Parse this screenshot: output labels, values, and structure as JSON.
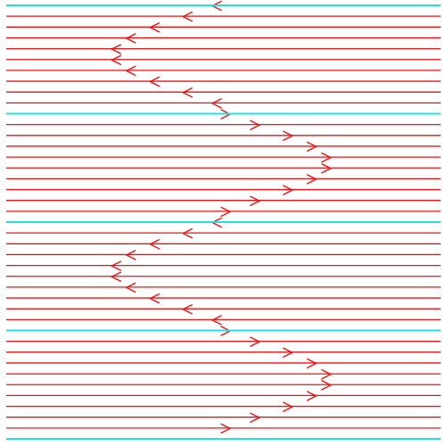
{
  "colors": {
    "background": "#ffffff",
    "line": "#ee1111",
    "boundary": "#22e0e0",
    "arrow": "#ee1111"
  },
  "icons": {
    "left": "chevron-left-icon",
    "right": "chevron-right-icon"
  },
  "diagram": {
    "rows_per_band": 10,
    "bands": [
      {
        "direction": "left",
        "offsets": [
          0.0,
          0.16,
          0.34,
          0.47,
          0.55,
          0.55,
          0.47,
          0.34,
          0.16,
          0.0
        ]
      },
      {
        "direction": "right",
        "offsets": [
          0.0,
          0.16,
          0.34,
          0.47,
          0.55,
          0.55,
          0.47,
          0.34,
          0.16,
          0.0
        ]
      },
      {
        "direction": "left",
        "offsets": [
          0.0,
          0.16,
          0.34,
          0.47,
          0.55,
          0.55,
          0.47,
          0.34,
          0.16,
          0.0
        ]
      },
      {
        "direction": "right",
        "offsets": [
          0.0,
          0.16,
          0.34,
          0.47,
          0.55,
          0.55,
          0.47,
          0.34,
          0.16,
          0.0
        ]
      }
    ]
  }
}
